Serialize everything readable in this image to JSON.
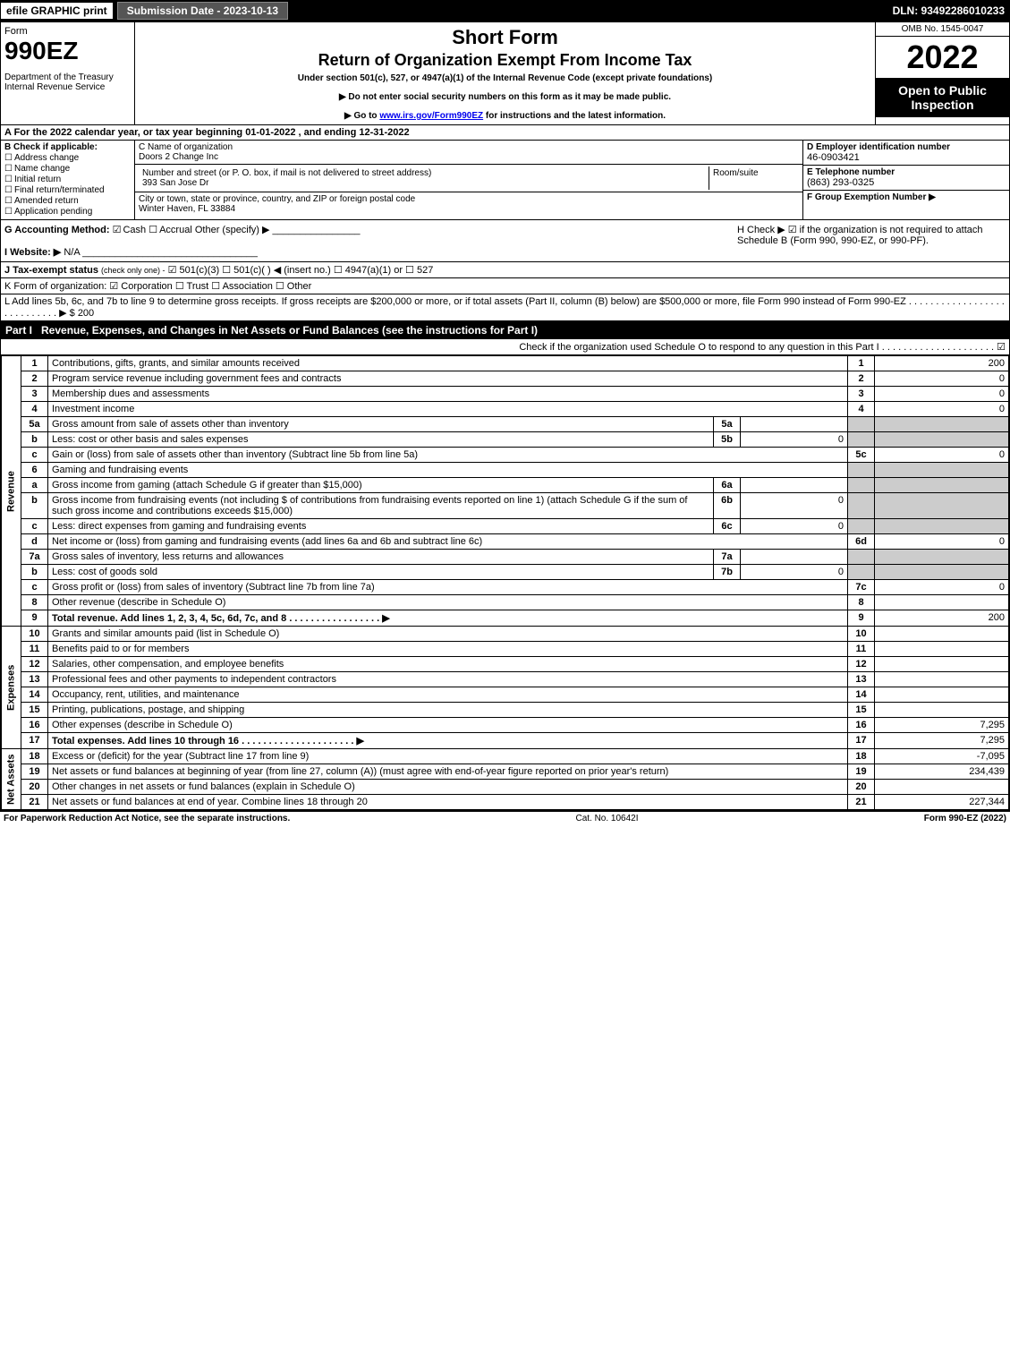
{
  "topbar": {
    "efile": "efile GRAPHIC print",
    "submission": "Submission Date - 2023-10-13",
    "dln": "DLN: 93492286010233"
  },
  "header": {
    "form_word": "Form",
    "form_num": "990EZ",
    "dept": "Department of the Treasury\nInternal Revenue Service",
    "title1": "Short Form",
    "title2": "Return of Organization Exempt From Income Tax",
    "sub": "Under section 501(c), 527, or 4947(a)(1) of the Internal Revenue Code (except private foundations)",
    "note1": "▶ Do not enter social security numbers on this form as it may be made public.",
    "note2_pre": "▶ Go to ",
    "note2_link": "www.irs.gov/Form990EZ",
    "note2_post": " for instructions and the latest information.",
    "omb": "OMB No. 1545-0047",
    "year": "2022",
    "open": "Open to Public Inspection"
  },
  "row_a": "A  For the 2022 calendar year, or tax year beginning 01-01-2022 , and ending 12-31-2022",
  "col_b": {
    "label": "B  Check if applicable:",
    "items": [
      "Address change",
      "Name change",
      "Initial return",
      "Final return/terminated",
      "Amended return",
      "Application pending"
    ]
  },
  "col_c": {
    "name_label": "C Name of organization",
    "name": "Doors 2 Change Inc",
    "street_label": "Number and street (or P. O. box, if mail is not delivered to street address)",
    "street": "393 San Jose Dr",
    "room_label": "Room/suite",
    "city_label": "City or town, state or province, country, and ZIP or foreign postal code",
    "city": "Winter Haven, FL  33884"
  },
  "col_d": {
    "ein_label": "D Employer identification number",
    "ein": "46-0903421",
    "tel_label": "E Telephone number",
    "tel": "(863) 293-0325",
    "grp_label": "F Group Exemption Number   ▶"
  },
  "gh": {
    "g_label": "G Accounting Method:",
    "g_cash": "Cash",
    "g_accrual": "Accrual",
    "g_other": "Other (specify) ▶",
    "i_label": "I Website: ▶",
    "i_val": "N/A",
    "h_label": "H  Check ▶ ☑ if the organization is not required to attach Schedule B (Form 990, 990-EZ, or 990-PF)."
  },
  "line_j": {
    "label": "J Tax-exempt status",
    "small": "(check only one) -",
    "opts": "☑ 501(c)(3)  ☐ 501(c)(  ) ◀ (insert no.)  ☐ 4947(a)(1) or  ☐ 527"
  },
  "line_k": "K Form of organization:   ☑ Corporation   ☐ Trust   ☐ Association   ☐ Other",
  "line_l": "L Add lines 5b, 6c, and 7b to line 9 to determine gross receipts. If gross receipts are $200,000 or more, or if total assets (Part II, column (B) below) are $500,000 or more, file Form 990 instead of Form 990-EZ . . . . . . . . . . . . . . . . . . . . . . . . . . . .  ▶ $ 200",
  "part1": {
    "num": "Part I",
    "title": "Revenue, Expenses, and Changes in Net Assets or Fund Balances (see the instructions for Part I)",
    "check": "Check if the organization used Schedule O to respond to any question in this Part I . . . . . . . . . . . . . . . . . . . . .  ☑"
  },
  "vlabels": {
    "rev": "Revenue",
    "exp": "Expenses",
    "net": "Net Assets"
  },
  "lines": [
    {
      "n": "1",
      "desc": "Contributions, gifts, grants, and similar amounts received",
      "rn": "1",
      "rv": "200"
    },
    {
      "n": "2",
      "desc": "Program service revenue including government fees and contracts",
      "rn": "2",
      "rv": "0"
    },
    {
      "n": "3",
      "desc": "Membership dues and assessments",
      "rn": "3",
      "rv": "0"
    },
    {
      "n": "4",
      "desc": "Investment income",
      "rn": "4",
      "rv": "0"
    },
    {
      "n": "5a",
      "desc": "Gross amount from sale of assets other than inventory",
      "in": "5a",
      "iv": "",
      "shaded": true
    },
    {
      "n": "b",
      "desc": "Less: cost or other basis and sales expenses",
      "in": "5b",
      "iv": "0",
      "shaded": true
    },
    {
      "n": "c",
      "desc": "Gain or (loss) from sale of assets other than inventory (Subtract line 5b from line 5a)",
      "rn": "5c",
      "rv": "0"
    },
    {
      "n": "6",
      "desc": "Gaming and fundraising events",
      "shaded": true
    },
    {
      "n": "a",
      "desc": "Gross income from gaming (attach Schedule G if greater than $15,000)",
      "in": "6a",
      "iv": "",
      "shaded": true
    },
    {
      "n": "b",
      "desc": "Gross income from fundraising events (not including $                   of contributions from fundraising events reported on line 1) (attach Schedule G if the sum of such gross income and contributions exceeds $15,000)",
      "in": "6b",
      "iv": "0",
      "shaded": true
    },
    {
      "n": "c",
      "desc": "Less: direct expenses from gaming and fundraising events",
      "in": "6c",
      "iv": "0",
      "shaded": true
    },
    {
      "n": "d",
      "desc": "Net income or (loss) from gaming and fundraising events (add lines 6a and 6b and subtract line 6c)",
      "rn": "6d",
      "rv": "0"
    },
    {
      "n": "7a",
      "desc": "Gross sales of inventory, less returns and allowances",
      "in": "7a",
      "iv": "",
      "shaded": true
    },
    {
      "n": "b",
      "desc": "Less: cost of goods sold",
      "in": "7b",
      "iv": "0",
      "shaded": true
    },
    {
      "n": "c",
      "desc": "Gross profit or (loss) from sales of inventory (Subtract line 7b from line 7a)",
      "rn": "7c",
      "rv": "0"
    },
    {
      "n": "8",
      "desc": "Other revenue (describe in Schedule O)",
      "rn": "8",
      "rv": ""
    },
    {
      "n": "9",
      "desc": "Total revenue. Add lines 1, 2, 3, 4, 5c, 6d, 7c, and 8   . . . . . . . . . . . . . . . . .   ▶",
      "rn": "9",
      "rv": "200",
      "bold": true
    }
  ],
  "exp_lines": [
    {
      "n": "10",
      "desc": "Grants and similar amounts paid (list in Schedule O)",
      "rn": "10",
      "rv": ""
    },
    {
      "n": "11",
      "desc": "Benefits paid to or for members",
      "rn": "11",
      "rv": ""
    },
    {
      "n": "12",
      "desc": "Salaries, other compensation, and employee benefits",
      "rn": "12",
      "rv": ""
    },
    {
      "n": "13",
      "desc": "Professional fees and other payments to independent contractors",
      "rn": "13",
      "rv": ""
    },
    {
      "n": "14",
      "desc": "Occupancy, rent, utilities, and maintenance",
      "rn": "14",
      "rv": ""
    },
    {
      "n": "15",
      "desc": "Printing, publications, postage, and shipping",
      "rn": "15",
      "rv": ""
    },
    {
      "n": "16",
      "desc": "Other expenses (describe in Schedule O)",
      "rn": "16",
      "rv": "7,295"
    },
    {
      "n": "17",
      "desc": "Total expenses. Add lines 10 through 16    . . . . . . . . . . . . . . . . . . . . .   ▶",
      "rn": "17",
      "rv": "7,295",
      "bold": true
    }
  ],
  "net_lines": [
    {
      "n": "18",
      "desc": "Excess or (deficit) for the year (Subtract line 17 from line 9)",
      "rn": "18",
      "rv": "-7,095"
    },
    {
      "n": "19",
      "desc": "Net assets or fund balances at beginning of year (from line 27, column (A)) (must agree with end-of-year figure reported on prior year's return)",
      "rn": "19",
      "rv": "234,439"
    },
    {
      "n": "20",
      "desc": "Other changes in net assets or fund balances (explain in Schedule O)",
      "rn": "20",
      "rv": ""
    },
    {
      "n": "21",
      "desc": "Net assets or fund balances at end of year. Combine lines 18 through 20",
      "rn": "21",
      "rv": "227,344"
    }
  ],
  "footer": {
    "left": "For Paperwork Reduction Act Notice, see the separate instructions.",
    "mid": "Cat. No. 10642I",
    "right": "Form 990-EZ (2022)"
  }
}
